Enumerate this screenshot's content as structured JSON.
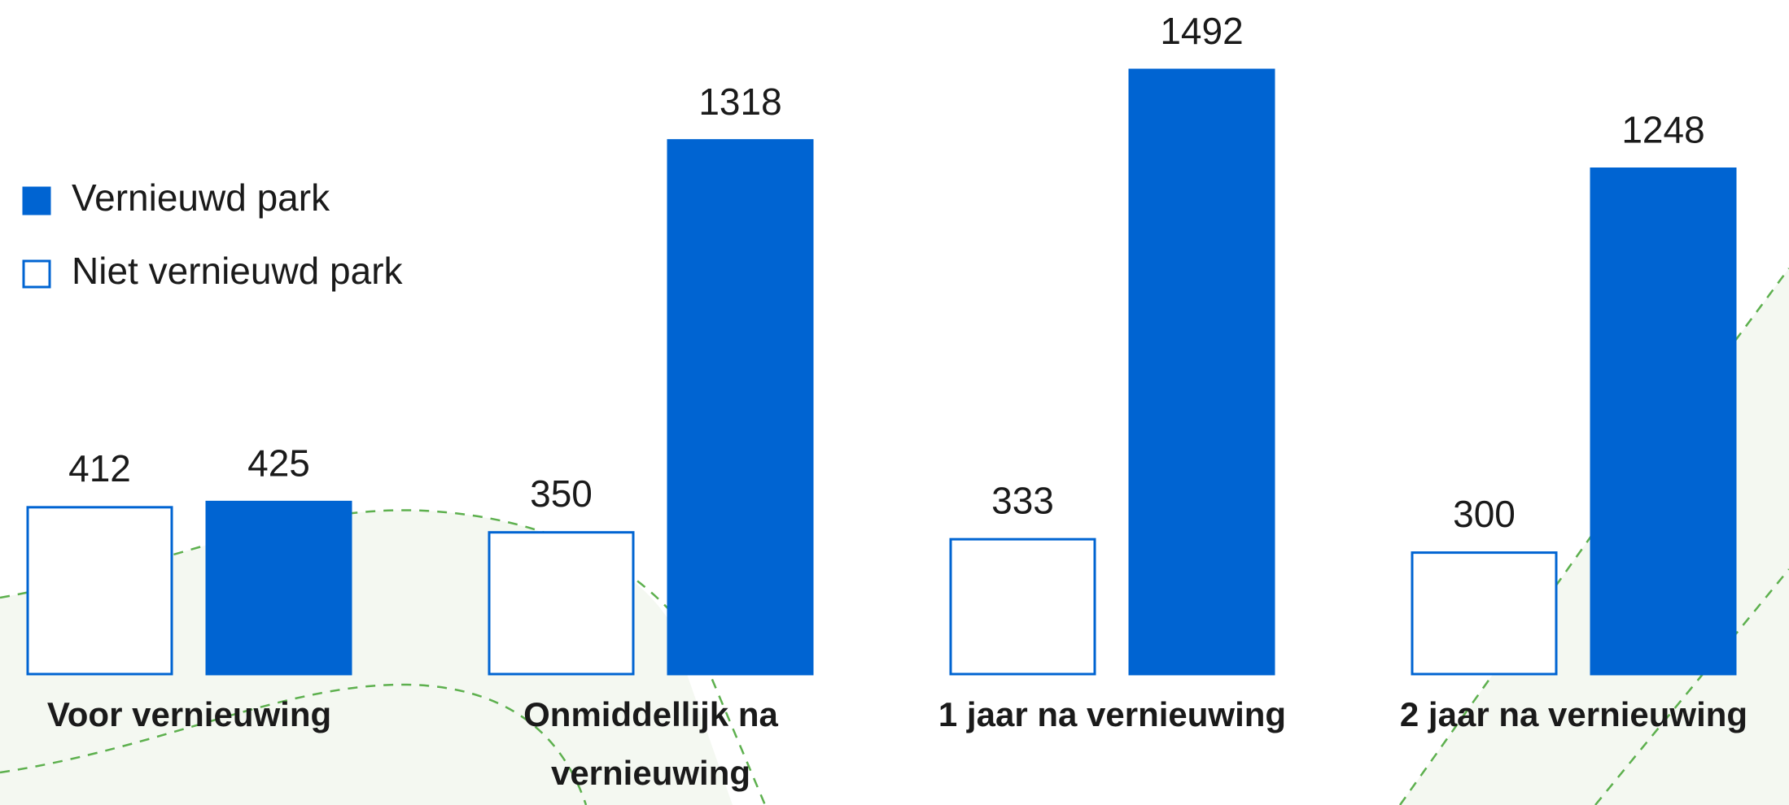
{
  "chart_data": {
    "type": "bar",
    "categories": [
      "Voor vernieuwing",
      "Onmiddellijk na vernieuwing",
      "1 jaar na vernieuwing",
      "2 jaar na vernieuwing"
    ],
    "series": [
      {
        "name": "Vernieuwd park",
        "color": "#0064d2",
        "values": [
          425,
          1318,
          1492,
          1248
        ]
      },
      {
        "name": "Niet vernieuwd park",
        "color": "#ffffff",
        "values": [
          412,
          350,
          333,
          300
        ]
      }
    ],
    "outline_color": "#0064d2",
    "legend": "left"
  }
}
